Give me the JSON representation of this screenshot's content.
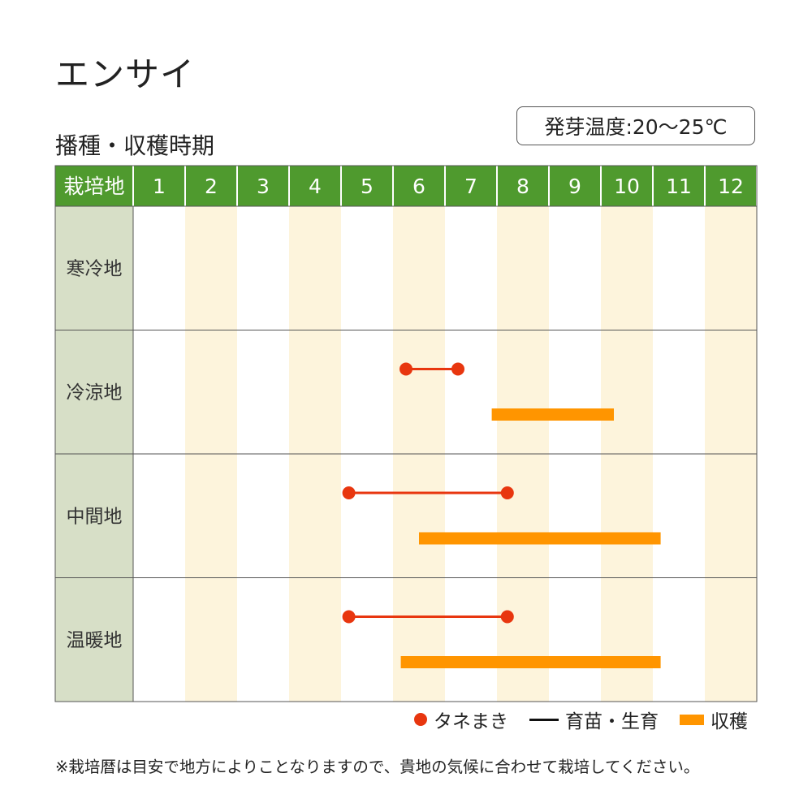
{
  "title": "エンサイ",
  "germination": "発芽温度:20〜25℃",
  "chart_data": {
    "type": "gantt",
    "title": "播種・収穫時期",
    "corner_label": "栽培地",
    "months": [
      "1",
      "2",
      "3",
      "4",
      "5",
      "6",
      "7",
      "8",
      "9",
      "10",
      "11",
      "12"
    ],
    "regions": [
      {
        "name": "寒冷地",
        "sowing": [],
        "harvest": []
      },
      {
        "name": "冷涼地",
        "sowing": [
          [
            6.25,
            7.25
          ]
        ],
        "harvest": [
          [
            7.9,
            10.25
          ]
        ]
      },
      {
        "name": "中間地",
        "sowing": [
          [
            5.15,
            8.2
          ]
        ],
        "harvest": [
          [
            6.5,
            11.15
          ]
        ]
      },
      {
        "name": "温暖地",
        "sowing": [
          [
            5.15,
            8.2
          ]
        ],
        "harvest": [
          [
            6.15,
            11.15
          ]
        ]
      }
    ],
    "legend": [
      {
        "key": "sowing",
        "label": "タネまき"
      },
      {
        "key": "nursery",
        "label": "育苗・生育"
      },
      {
        "key": "harvest",
        "label": "収穫"
      }
    ],
    "colors": {
      "header_bg": "#4f9a2e",
      "header_text": "#ffffff",
      "label_col_bg": "#d7dfc7",
      "even_month_bg": "#fdf4dc",
      "sowing": "#e8360f",
      "harvest": "#ff9500",
      "grid": "#555555"
    }
  },
  "note": "※栽培暦は目安で地方によりことなりますので、貴地の気候に合わせて栽培してください。"
}
